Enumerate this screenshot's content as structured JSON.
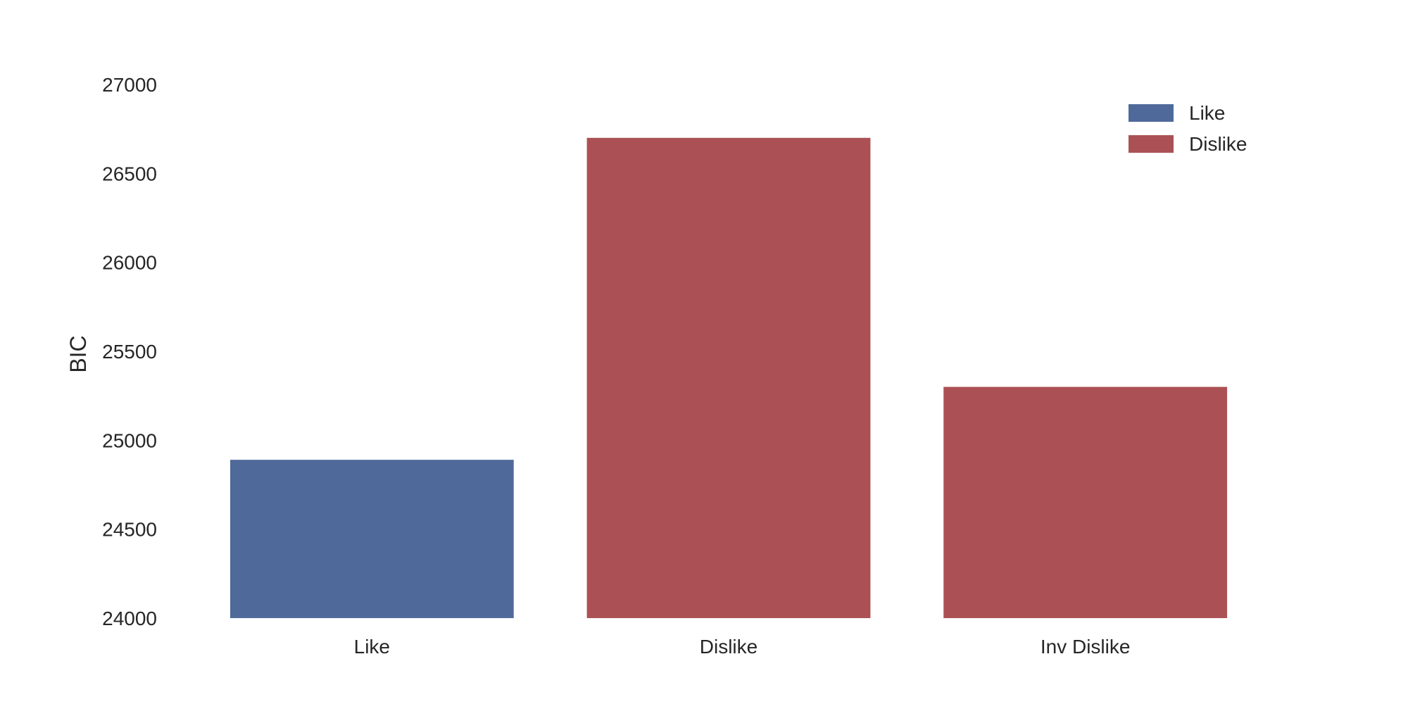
{
  "chart_data": {
    "type": "bar",
    "title": "",
    "xlabel": "",
    "ylabel": "BIC",
    "categories": [
      "Like",
      "Dislike",
      "Inv Dislike"
    ],
    "values": [
      24890,
      26700,
      25300
    ],
    "bar_groups": [
      "Like",
      "Dislike",
      "Dislike"
    ],
    "ylim": [
      24000,
      27300
    ],
    "yticks": [
      24000,
      24500,
      25000,
      25500,
      26000,
      26500,
      27000
    ],
    "ytick_labels": [
      "24000",
      "24500",
      "25000",
      "25500",
      "26000",
      "26500",
      "27000"
    ],
    "grid": false,
    "legend": {
      "placement": "top-right",
      "entries": [
        {
          "label": "Like",
          "color": "#4f6a9a"
        },
        {
          "label": "Dislike",
          "color": "#ab5155"
        }
      ]
    }
  }
}
